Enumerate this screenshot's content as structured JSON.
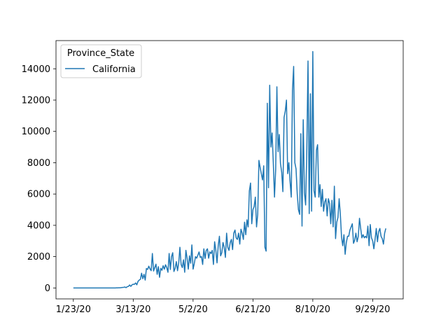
{
  "chart_data": {
    "type": "line",
    "title": "",
    "xlabel": "",
    "ylabel": "",
    "legend": {
      "title": "Province_State",
      "placement": "top-left"
    },
    "grid": false,
    "x_tick_labels": [
      "1/23/20",
      "3/13/20",
      "5/2/20",
      "6/21/20",
      "8/10/20",
      "9/29/20"
    ],
    "y_ticks": [
      0,
      2000,
      4000,
      6000,
      8000,
      10000,
      12000,
      14000
    ],
    "ylim": [
      -700,
      15800
    ],
    "x_start_date": "1/23/20",
    "series": [
      {
        "name": "California",
        "color": "#1f77b4",
        "values": [
          0,
          0,
          0,
          0,
          0,
          0,
          0,
          0,
          0,
          0,
          0,
          0,
          0,
          0,
          0,
          0,
          0,
          0,
          0,
          0,
          0,
          0,
          0,
          0,
          0,
          0,
          0,
          0,
          0,
          0,
          0,
          0,
          0,
          0,
          0,
          0,
          5,
          5,
          10,
          10,
          20,
          30,
          40,
          60,
          20,
          80,
          100,
          190,
          100,
          200,
          240,
          230,
          320,
          200,
          420,
          500,
          550,
          940,
          590,
          870,
          500,
          1240,
          1180,
          1390,
          1220,
          1100,
          2200,
          1080,
          1300,
          1520,
          870,
          1360,
          680,
          1250,
          1130,
          1420,
          1200,
          1480,
          1300,
          1000,
          2200,
          1180,
          2000,
          2250,
          1050,
          1250,
          1680,
          1100,
          1600,
          2600,
          1500,
          1300,
          1800,
          1000,
          2400,
          1900,
          1200,
          2050,
          1580,
          2750,
          1200,
          1550,
          2000,
          1900,
          2100,
          2300,
          1950,
          2000,
          1500,
          2500,
          1880,
          2400,
          2500,
          1900,
          2300,
          2200,
          2400,
          1500,
          2950,
          2400,
          1600,
          2700,
          3300,
          2050,
          2250,
          2900,
          2600,
          1950,
          3500,
          2600,
          2400,
          2900,
          3100,
          2450,
          3500,
          3700,
          3200,
          3100,
          3500,
          2800,
          3750,
          3500,
          3100,
          4200,
          3400,
          4350,
          3900,
          6200,
          6700,
          4100,
          5000,
          5200,
          5800,
          3900,
          4700,
          8150,
          7700,
          7300,
          6900,
          7800,
          2600,
          2350,
          11800,
          6400,
          12950,
          9000,
          9900,
          8000,
          5800,
          7600,
          12850,
          8700,
          9800,
          7950,
          7400,
          6150,
          10900,
          11300,
          12000,
          7300,
          8000,
          6800,
          5800,
          12600,
          14150,
          8000,
          7600,
          6000,
          5000,
          4700,
          9850,
          3950,
          10750,
          6100,
          5300,
          8900,
          14500,
          4750,
          12400,
          4900,
          15100,
          6200,
          5800,
          8800,
          9150,
          5800,
          6600,
          5200,
          6300,
          4900,
          5500,
          5700,
          4600,
          5700,
          5400,
          4100,
          5600,
          3900,
          6500,
          3150,
          4200,
          4500,
          5700,
          4700,
          3250,
          2700,
          3400,
          2150,
          2900,
          3300,
          3300,
          3700,
          3900,
          4100,
          2850,
          3050,
          3500,
          2950,
          3300,
          4450,
          3800,
          3200,
          3400,
          3200,
          3300,
          3200,
          3950,
          2700,
          4050,
          3200,
          3000,
          2500,
          3100,
          3800,
          2950,
          3600,
          3800,
          3300,
          3150,
          2800,
          3500,
          3800
        ]
      }
    ]
  }
}
